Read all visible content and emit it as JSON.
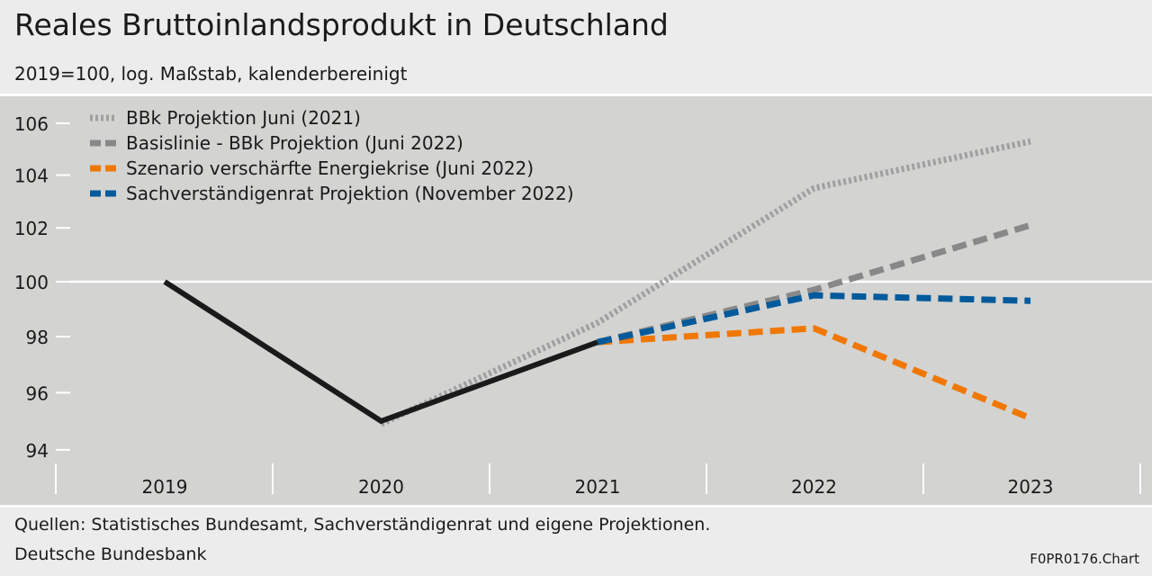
{
  "chart_data": {
    "type": "line",
    "title": "Reales Bruttoinlandsprodukt in Deutschland",
    "subtitle": "2019=100, log. Maßstab, kalenderbereinigt",
    "x": [
      "2019",
      "2020",
      "2021",
      "2022",
      "2023"
    ],
    "yscale": "log",
    "ylim": [
      93.5,
      107
    ],
    "yticks": [
      94,
      96,
      98,
      100,
      102,
      104,
      106
    ],
    "reference_line": 100,
    "legend_position": "top-left",
    "actual": {
      "values": [
        100,
        95.0,
        97.8,
        null,
        null
      ],
      "color": "#1a1a1a"
    },
    "series": [
      {
        "name": "BBk Projektion Juni (2021)",
        "values": [
          null,
          94.9,
          98.5,
          103.5,
          105.3
        ],
        "color": "#a0a0a0",
        "style": "dotted"
      },
      {
        "name": "Basislinie - BBk Projektion (Juni 2022)",
        "values": [
          null,
          null,
          97.8,
          99.7,
          102.1
        ],
        "color": "#888888",
        "style": "dashed"
      },
      {
        "name": "Szenario verschärfte Energiekrise (Juni 2022)",
        "values": [
          null,
          null,
          97.8,
          98.3,
          95.1
        ],
        "color": "#f07800",
        "style": "dashed"
      },
      {
        "name": "Sachverständigenrat Projektion (November 2022)",
        "values": [
          null,
          null,
          97.8,
          99.5,
          99.3
        ],
        "color": "#005a9b",
        "style": "dashed"
      }
    ]
  },
  "footer": {
    "source": "Quellen: Statistisches Bundesamt, Sachverständigenrat und eigene Projektionen.",
    "org": "Deutsche Bundesbank",
    "code": "F0PR0176.Chart"
  }
}
